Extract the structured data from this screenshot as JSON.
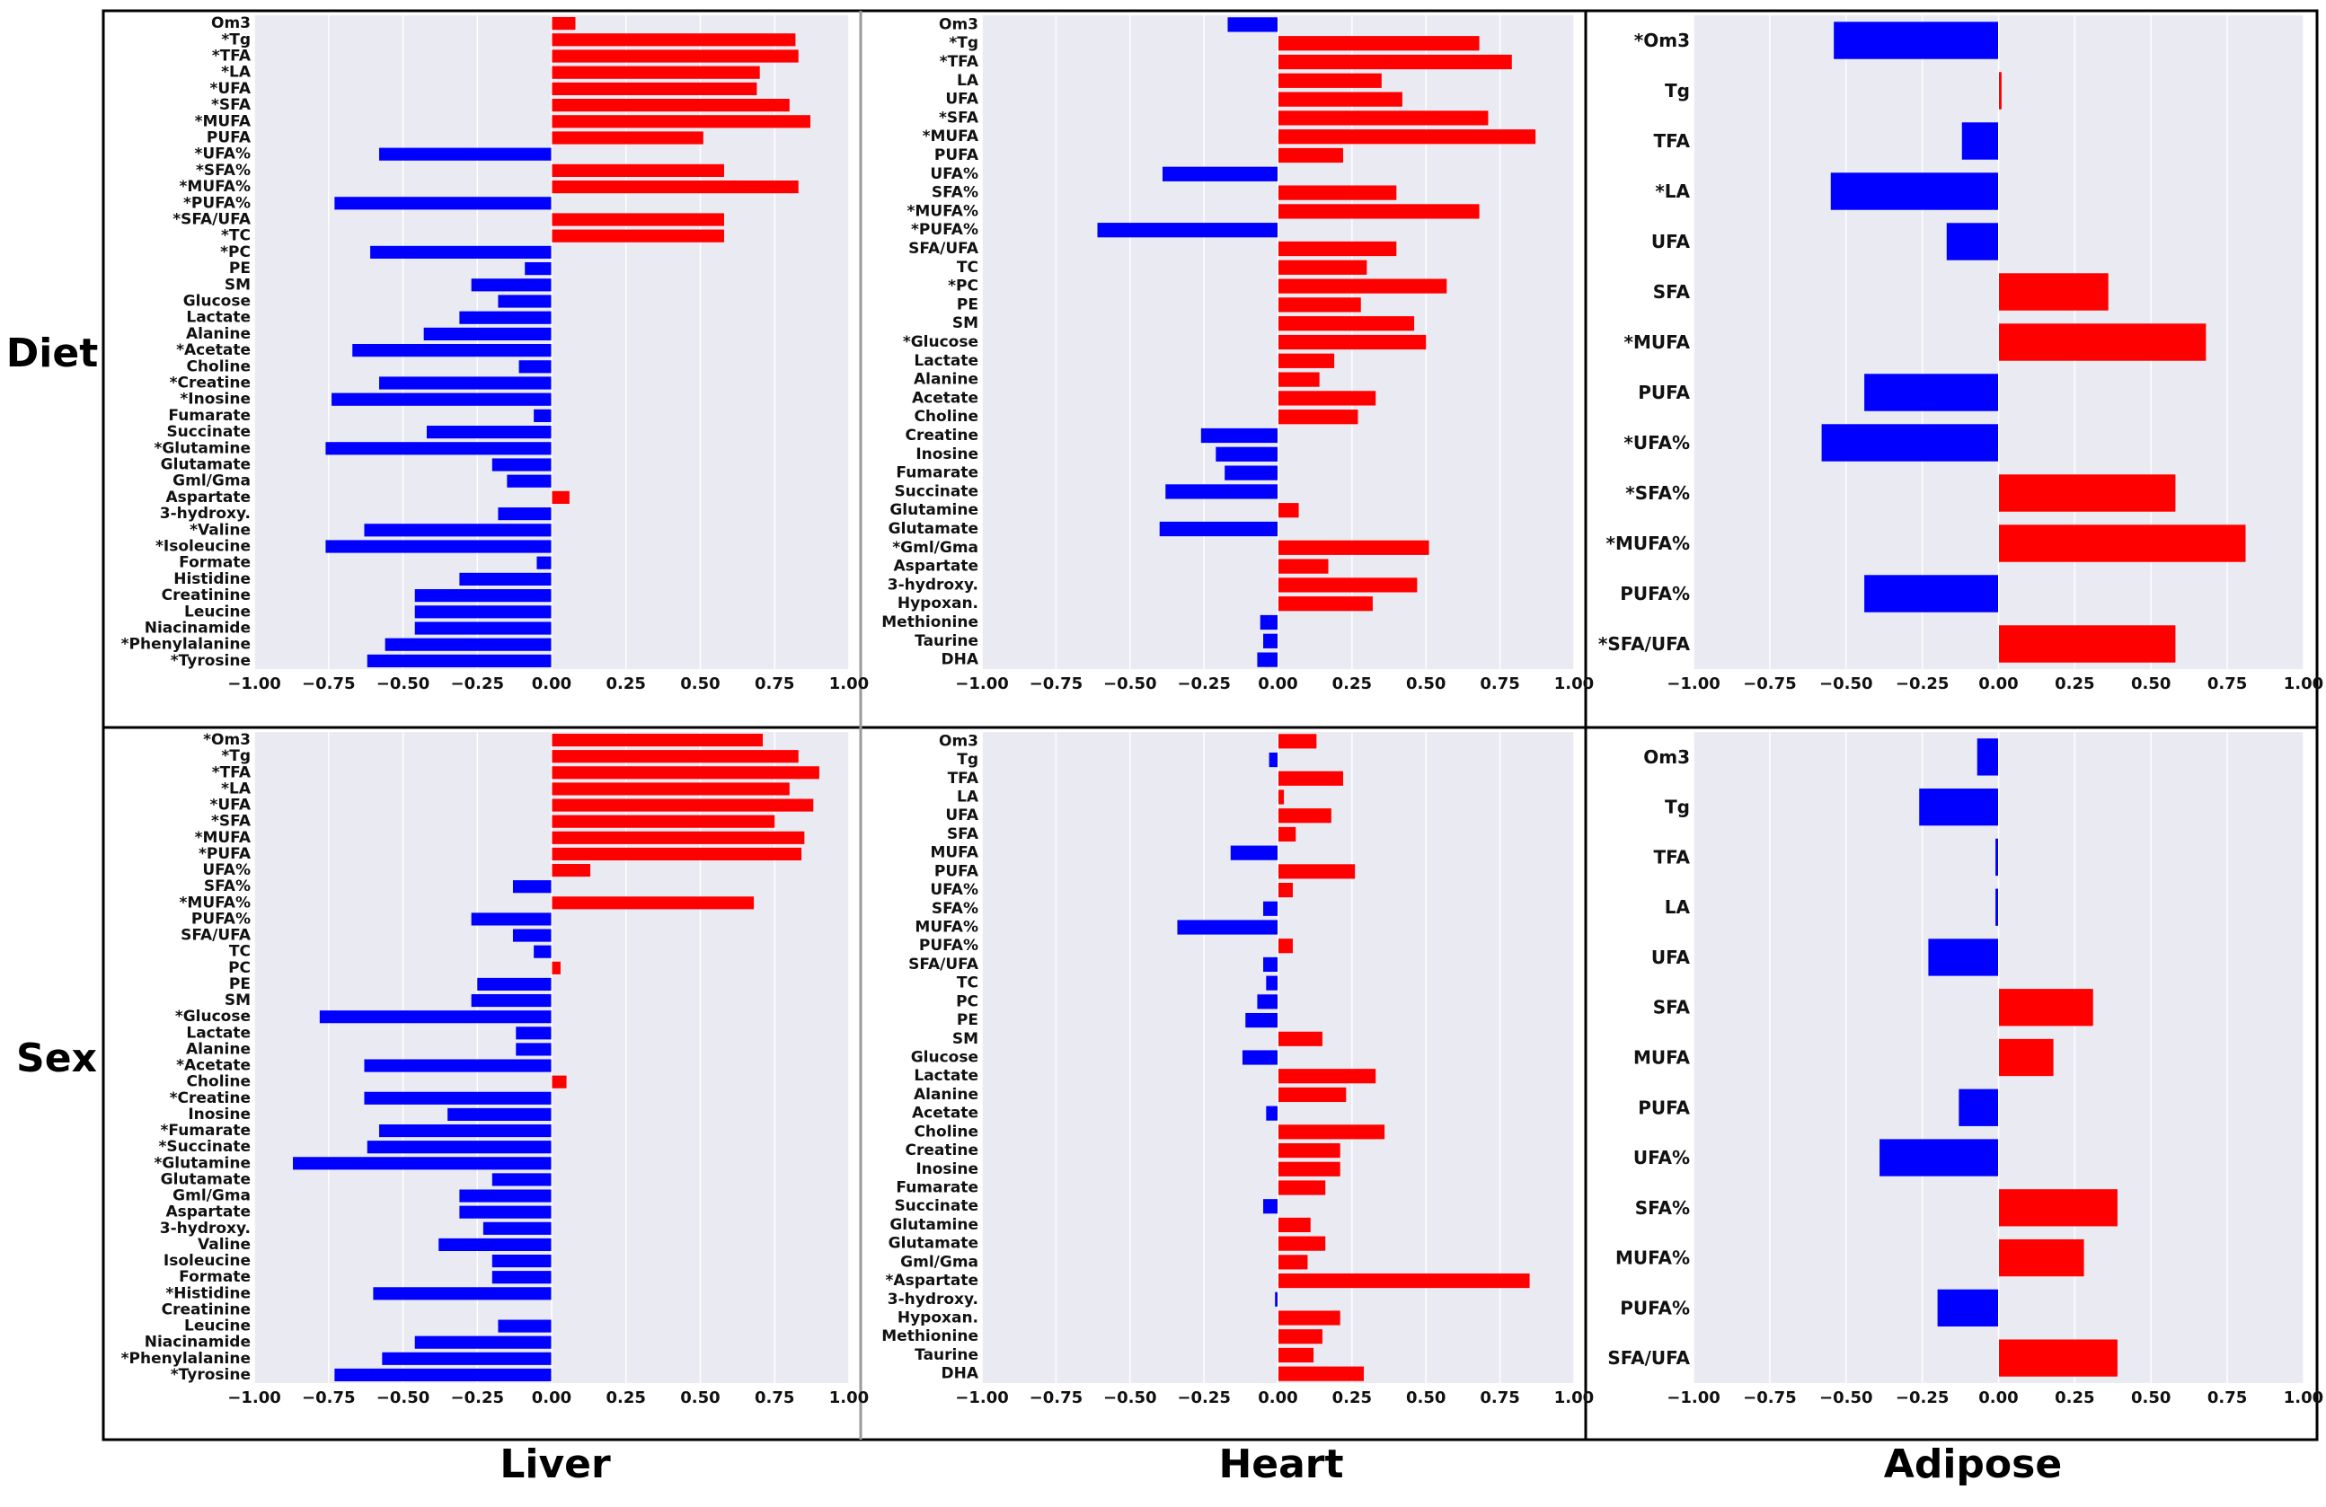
{
  "row_labels": [
    "Diet",
    "Sex"
  ],
  "column_labels": [
    "Liver",
    "Heart",
    "Adipose"
  ],
  "colors": {
    "positive": "#ff0000",
    "negative": "#0000ff",
    "plot_background": "#eaeaf2",
    "frame": "#000000"
  },
  "x_ticks": [
    "−1.00",
    "−0.75",
    "−0.50",
    "−0.25",
    "0.00",
    "0.25",
    "0.50",
    "0.75",
    "1.00"
  ],
  "chart_data": [
    {
      "type": "bar",
      "orientation": "horizontal",
      "row": "Diet",
      "column": "Liver",
      "xlim": [
        -1,
        1
      ],
      "categories": [
        "Om3",
        "*Tg",
        "*TFA",
        "*LA",
        "*UFA",
        "*SFA",
        "*MUFA",
        "PUFA",
        "*UFA%",
        "*SFA%",
        "*MUFA%",
        "*PUFA%",
        "*SFA/UFA",
        "*TC",
        "*PC",
        "PE",
        "SM",
        "Glucose",
        "Lactate",
        "Alanine",
        "*Acetate",
        "Choline",
        "*Creatine",
        "*Inosine",
        "Fumarate",
        "Succinate",
        "*Glutamine",
        "Glutamate",
        "Gml/Gma",
        "Aspartate",
        "3-hydroxy.",
        "*Valine",
        "*Isoleucine",
        "Formate",
        "Histidine",
        "Creatinine",
        "Leucine",
        "Niacinamide",
        "*Phenylalanine",
        "*Tyrosine"
      ],
      "values": [
        0.08,
        0.82,
        0.83,
        0.7,
        0.69,
        0.8,
        0.87,
        0.51,
        -0.58,
        0.58,
        0.83,
        -0.73,
        0.58,
        0.58,
        -0.61,
        -0.09,
        -0.27,
        -0.18,
        -0.31,
        -0.43,
        -0.67,
        -0.11,
        -0.58,
        -0.74,
        -0.06,
        -0.42,
        -0.76,
        -0.2,
        -0.15,
        0.06,
        -0.18,
        -0.63,
        -0.76,
        -0.05,
        -0.31,
        -0.46,
        -0.46,
        -0.46,
        -0.56,
        -0.62
      ]
    },
    {
      "type": "bar",
      "orientation": "horizontal",
      "row": "Diet",
      "column": "Heart",
      "xlim": [
        -1,
        1
      ],
      "categories": [
        "Om3",
        "*Tg",
        "*TFA",
        "LA",
        "UFA",
        "*SFA",
        "*MUFA",
        "PUFA",
        "UFA%",
        "SFA%",
        "*MUFA%",
        "*PUFA%",
        "SFA/UFA",
        "TC",
        "*PC",
        "PE",
        "SM",
        "*Glucose",
        "Lactate",
        "Alanine",
        "Acetate",
        "Choline",
        "Creatine",
        "Inosine",
        "Fumarate",
        "Succinate",
        "Glutamine",
        "Glutamate",
        "*Gml/Gma",
        "Aspartate",
        "3-hydroxy.",
        "Hypoxan.",
        "Methionine",
        "Taurine",
        "DHA"
      ],
      "values": [
        -0.17,
        0.68,
        0.79,
        0.35,
        0.42,
        0.71,
        0.87,
        0.22,
        -0.39,
        0.4,
        0.68,
        -0.61,
        0.4,
        0.3,
        0.57,
        0.28,
        0.46,
        0.5,
        0.19,
        0.14,
        0.33,
        0.27,
        -0.26,
        -0.21,
        -0.18,
        -0.38,
        0.07,
        -0.4,
        0.51,
        0.17,
        0.47,
        0.32,
        -0.06,
        -0.05,
        -0.07
      ]
    },
    {
      "type": "bar",
      "orientation": "horizontal",
      "row": "Diet",
      "column": "Adipose",
      "xlim": [
        -1,
        1
      ],
      "categories": [
        "*Om3",
        "Tg",
        "TFA",
        "*LA",
        "UFA",
        "SFA",
        "*MUFA",
        "PUFA",
        "*UFA%",
        "*SFA%",
        "*MUFA%",
        "PUFA%",
        "*SFA/UFA"
      ],
      "values": [
        -0.54,
        0.01,
        -0.12,
        -0.55,
        -0.17,
        0.36,
        0.68,
        -0.44,
        -0.58,
        0.58,
        0.81,
        -0.44,
        0.58
      ]
    },
    {
      "type": "bar",
      "orientation": "horizontal",
      "row": "Sex",
      "column": "Liver",
      "xlim": [
        -1,
        1
      ],
      "categories": [
        "*Om3",
        "*Tg",
        "*TFA",
        "*LA",
        "*UFA",
        "*SFA",
        "*MUFA",
        "*PUFA",
        "UFA%",
        "SFA%",
        "*MUFA%",
        "PUFA%",
        "SFA/UFA",
        "TC",
        "PC",
        "PE",
        "SM",
        "*Glucose",
        "Lactate",
        "Alanine",
        "*Acetate",
        "Choline",
        "*Creatine",
        "Inosine",
        "*Fumarate",
        "*Succinate",
        "*Glutamine",
        "Glutamate",
        "Gml/Gma",
        "Aspartate",
        "3-hydroxy.",
        "Valine",
        "Isoleucine",
        "Formate",
        "*Histidine",
        "Creatinine",
        "Leucine",
        "Niacinamide",
        "*Phenylalanine",
        "*Tyrosine"
      ],
      "values": [
        0.71,
        0.83,
        0.9,
        0.8,
        0.88,
        0.75,
        0.85,
        0.84,
        0.13,
        -0.13,
        0.68,
        -0.27,
        -0.13,
        -0.06,
        0.03,
        -0.25,
        -0.27,
        -0.78,
        -0.12,
        -0.12,
        -0.63,
        0.05,
        -0.63,
        -0.35,
        -0.58,
        -0.62,
        -0.87,
        -0.2,
        -0.31,
        -0.31,
        -0.23,
        -0.38,
        -0.2,
        -0.2,
        -0.6,
        0.0,
        -0.18,
        -0.46,
        -0.57,
        -0.73
      ]
    },
    {
      "type": "bar",
      "orientation": "horizontal",
      "row": "Sex",
      "column": "Heart",
      "xlim": [
        -1,
        1
      ],
      "categories": [
        "Om3",
        "Tg",
        "TFA",
        "LA",
        "UFA",
        "SFA",
        "MUFA",
        "PUFA",
        "UFA%",
        "SFA%",
        "MUFA%",
        "PUFA%",
        "SFA/UFA",
        "TC",
        "PC",
        "PE",
        "SM",
        "Glucose",
        "Lactate",
        "Alanine",
        "Acetate",
        "Choline",
        "Creatine",
        "Inosine",
        "Fumarate",
        "Succinate",
        "Glutamine",
        "Glutamate",
        "Gml/Gma",
        "*Aspartate",
        "3-hydroxy.",
        "Hypoxan.",
        "Methionine",
        "Taurine",
        "DHA"
      ],
      "values": [
        0.13,
        -0.03,
        0.22,
        0.02,
        0.18,
        0.06,
        -0.16,
        0.26,
        0.05,
        -0.05,
        -0.34,
        0.05,
        -0.05,
        -0.04,
        -0.07,
        -0.11,
        0.15,
        -0.12,
        0.33,
        0.23,
        -0.04,
        0.36,
        0.21,
        0.21,
        0.16,
        -0.05,
        0.11,
        0.16,
        0.1,
        0.85,
        -0.01,
        0.21,
        0.15,
        0.12,
        0.29
      ]
    },
    {
      "type": "bar",
      "orientation": "horizontal",
      "row": "Sex",
      "column": "Adipose",
      "xlim": [
        -1,
        1
      ],
      "categories": [
        "Om3",
        "Tg",
        "TFA",
        "LA",
        "UFA",
        "SFA",
        "MUFA",
        "PUFA",
        "UFA%",
        "SFA%",
        "MUFA%",
        "PUFA%",
        "SFA/UFA"
      ],
      "values": [
        -0.07,
        -0.26,
        -0.01,
        -0.01,
        -0.23,
        0.31,
        0.18,
        -0.13,
        -0.39,
        0.39,
        0.28,
        -0.2,
        0.39
      ]
    }
  ]
}
